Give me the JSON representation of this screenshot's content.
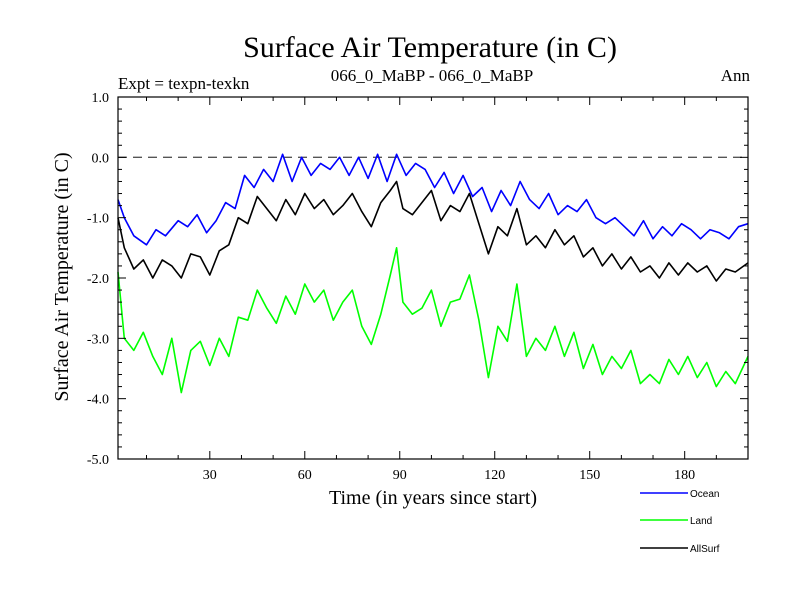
{
  "chart_data": {
    "type": "line",
    "title": "Surface Air Temperature (in C)",
    "subtitle_left": "Expt = texpn-texkn",
    "subtitle_center": "066_0_MaBP - 066_0_MaBP",
    "subtitle_right": "Ann",
    "xlabel": "Time (in years since start)",
    "ylabel": "Surface Air Temperature (in C)",
    "xlim": [
      1,
      200
    ],
    "ylim": [
      -5.0,
      1.0
    ],
    "xticks": [
      30,
      60,
      90,
      120,
      150,
      180
    ],
    "xtick_labels": [
      "30",
      "60",
      "90",
      "120",
      "150",
      "180"
    ],
    "yticks": [
      1.0,
      0.0,
      -1.0,
      -2.0,
      -3.0,
      -4.0,
      -5.0
    ],
    "ytick_labels": [
      "1.0",
      "0.0",
      "-1.0",
      "-2.0",
      "-3.0",
      "-4.0",
      "-5.0"
    ],
    "reference_line": 0.0,
    "legend_position": "bottom-right",
    "series": [
      {
        "name": "Ocean",
        "color": "#0000ff",
        "x": [
          1,
          3,
          6,
          10,
          13,
          16,
          20,
          23,
          26,
          29,
          32,
          35,
          38,
          41,
          44,
          47,
          50,
          53,
          56,
          59,
          62,
          65,
          68,
          71,
          74,
          77,
          80,
          83,
          86,
          89,
          92,
          95,
          98,
          101,
          104,
          107,
          110,
          113,
          116,
          119,
          122,
          125,
          128,
          131,
          134,
          137,
          140,
          143,
          146,
          149,
          152,
          155,
          158,
          161,
          164,
          167,
          170,
          173,
          176,
          179,
          182,
          185,
          188,
          191,
          194,
          197,
          200
        ],
        "values": [
          -0.7,
          -1.0,
          -1.3,
          -1.45,
          -1.2,
          -1.3,
          -1.05,
          -1.15,
          -0.95,
          -1.25,
          -1.05,
          -0.75,
          -0.85,
          -0.3,
          -0.5,
          -0.2,
          -0.4,
          0.05,
          -0.4,
          0.0,
          -0.3,
          -0.1,
          -0.2,
          0.0,
          -0.3,
          0.0,
          -0.35,
          0.05,
          -0.4,
          0.05,
          -0.3,
          -0.1,
          -0.2,
          -0.5,
          -0.25,
          -0.6,
          -0.3,
          -0.65,
          -0.5,
          -0.9,
          -0.55,
          -0.8,
          -0.4,
          -0.7,
          -0.85,
          -0.6,
          -0.95,
          -0.8,
          -0.9,
          -0.7,
          -1.0,
          -1.1,
          -1.0,
          -1.15,
          -1.3,
          -1.05,
          -1.35,
          -1.15,
          -1.3,
          -1.1,
          -1.2,
          -1.35,
          -1.2,
          -1.25,
          -1.35,
          -1.15,
          -1.1
        ]
      },
      {
        "name": "Land",
        "color": "#00ff00",
        "x": [
          1,
          3,
          6,
          9,
          12,
          15,
          18,
          21,
          24,
          27,
          30,
          33,
          36,
          39,
          42,
          45,
          48,
          51,
          54,
          57,
          60,
          63,
          66,
          69,
          72,
          75,
          78,
          81,
          84,
          87,
          89,
          91,
          94,
          97,
          100,
          103,
          106,
          109,
          112,
          115,
          118,
          121,
          124,
          127,
          130,
          133,
          136,
          139,
          142,
          145,
          148,
          151,
          154,
          157,
          160,
          163,
          166,
          169,
          172,
          175,
          178,
          181,
          184,
          187,
          190,
          193,
          196,
          200
        ],
        "values": [
          -1.9,
          -3.0,
          -3.2,
          -2.9,
          -3.3,
          -3.6,
          -3.0,
          -3.9,
          -3.2,
          -3.05,
          -3.45,
          -3.0,
          -3.3,
          -2.65,
          -2.7,
          -2.2,
          -2.5,
          -2.75,
          -2.3,
          -2.6,
          -2.1,
          -2.4,
          -2.2,
          -2.7,
          -2.4,
          -2.2,
          -2.8,
          -3.1,
          -2.6,
          -1.95,
          -1.5,
          -2.4,
          -2.6,
          -2.5,
          -2.2,
          -2.8,
          -2.4,
          -2.35,
          -1.95,
          -2.7,
          -3.65,
          -2.8,
          -3.05,
          -2.1,
          -3.3,
          -3.0,
          -3.2,
          -2.8,
          -3.3,
          -2.9,
          -3.5,
          -3.1,
          -3.6,
          -3.3,
          -3.5,
          -3.2,
          -3.75,
          -3.6,
          -3.75,
          -3.35,
          -3.6,
          -3.3,
          -3.65,
          -3.4,
          -3.8,
          -3.55,
          -3.75,
          -3.3
        ]
      },
      {
        "name": "AllSurf",
        "color": "#000000",
        "x": [
          1,
          3,
          6,
          9,
          12,
          15,
          18,
          21,
          24,
          27,
          30,
          33,
          36,
          39,
          42,
          45,
          48,
          51,
          54,
          57,
          60,
          63,
          66,
          69,
          72,
          75,
          78,
          81,
          84,
          87,
          89,
          91,
          94,
          97,
          100,
          103,
          106,
          109,
          112,
          115,
          118,
          121,
          124,
          127,
          130,
          133,
          136,
          139,
          142,
          145,
          148,
          151,
          154,
          157,
          160,
          163,
          166,
          169,
          172,
          175,
          178,
          181,
          184,
          187,
          190,
          193,
          196,
          200
        ],
        "values": [
          -1.0,
          -1.5,
          -1.85,
          -1.7,
          -2.0,
          -1.7,
          -1.8,
          -2.0,
          -1.6,
          -1.65,
          -1.95,
          -1.55,
          -1.45,
          -1.0,
          -1.1,
          -0.65,
          -0.85,
          -1.05,
          -0.7,
          -0.95,
          -0.6,
          -0.85,
          -0.7,
          -0.95,
          -0.8,
          -0.6,
          -0.9,
          -1.15,
          -0.75,
          -0.55,
          -0.4,
          -0.85,
          -0.95,
          -0.75,
          -0.55,
          -1.05,
          -0.8,
          -0.9,
          -0.6,
          -1.1,
          -1.6,
          -1.15,
          -1.3,
          -0.85,
          -1.45,
          -1.3,
          -1.5,
          -1.2,
          -1.45,
          -1.3,
          -1.65,
          -1.5,
          -1.8,
          -1.6,
          -1.85,
          -1.65,
          -1.9,
          -1.8,
          -2.0,
          -1.75,
          -1.95,
          -1.75,
          -1.9,
          -1.8,
          -2.05,
          -1.85,
          -1.9,
          -1.75
        ]
      }
    ]
  }
}
